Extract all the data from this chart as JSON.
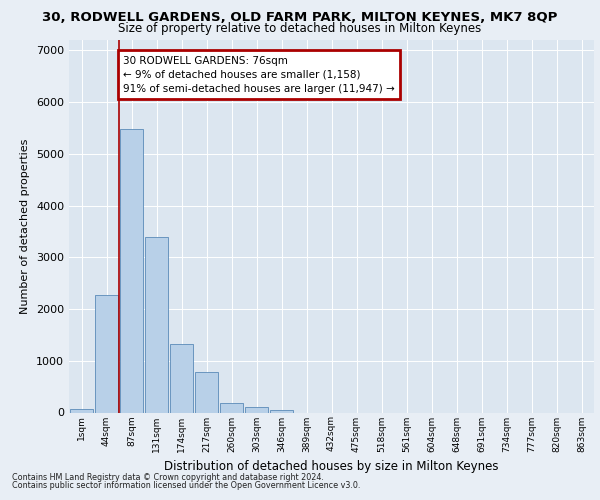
{
  "title_line1": "30, RODWELL GARDENS, OLD FARM PARK, MILTON KEYNES, MK7 8QP",
  "title_line2": "Size of property relative to detached houses in Milton Keynes",
  "xlabel": "Distribution of detached houses by size in Milton Keynes",
  "ylabel": "Number of detached properties",
  "categories": [
    "1sqm",
    "44sqm",
    "87sqm",
    "131sqm",
    "174sqm",
    "217sqm",
    "260sqm",
    "303sqm",
    "346sqm",
    "389sqm",
    "432sqm",
    "475sqm",
    "518sqm",
    "561sqm",
    "604sqm",
    "648sqm",
    "691sqm",
    "734sqm",
    "777sqm",
    "820sqm",
    "863sqm"
  ],
  "values": [
    70,
    2280,
    5480,
    3400,
    1320,
    780,
    180,
    100,
    50,
    0,
    0,
    0,
    0,
    0,
    0,
    0,
    0,
    0,
    0,
    0,
    0
  ],
  "bar_color": "#b8d0e8",
  "bar_edge_color": "#5a8ab8",
  "property_line_bar_index": 2,
  "annotation_text_line1": "30 RODWELL GARDENS: 76sqm",
  "annotation_text_line2": "← 9% of detached houses are smaller (1,158)",
  "annotation_text_line3": "91% of semi-detached houses are larger (11,947) →",
  "annotation_box_color": "#ffffff",
  "annotation_border_color": "#aa0000",
  "ylim": [
    0,
    7200
  ],
  "yticks": [
    0,
    1000,
    2000,
    3000,
    4000,
    5000,
    6000,
    7000
  ],
  "footer_line1": "Contains HM Land Registry data © Crown copyright and database right 2024.",
  "footer_line2": "Contains public sector information licensed under the Open Government Licence v3.0.",
  "bg_color": "#e8eef5",
  "plot_bg_color": "#dce6f0",
  "grid_color": "#ffffff",
  "title1_fontsize": 9.5,
  "title2_fontsize": 8.5
}
